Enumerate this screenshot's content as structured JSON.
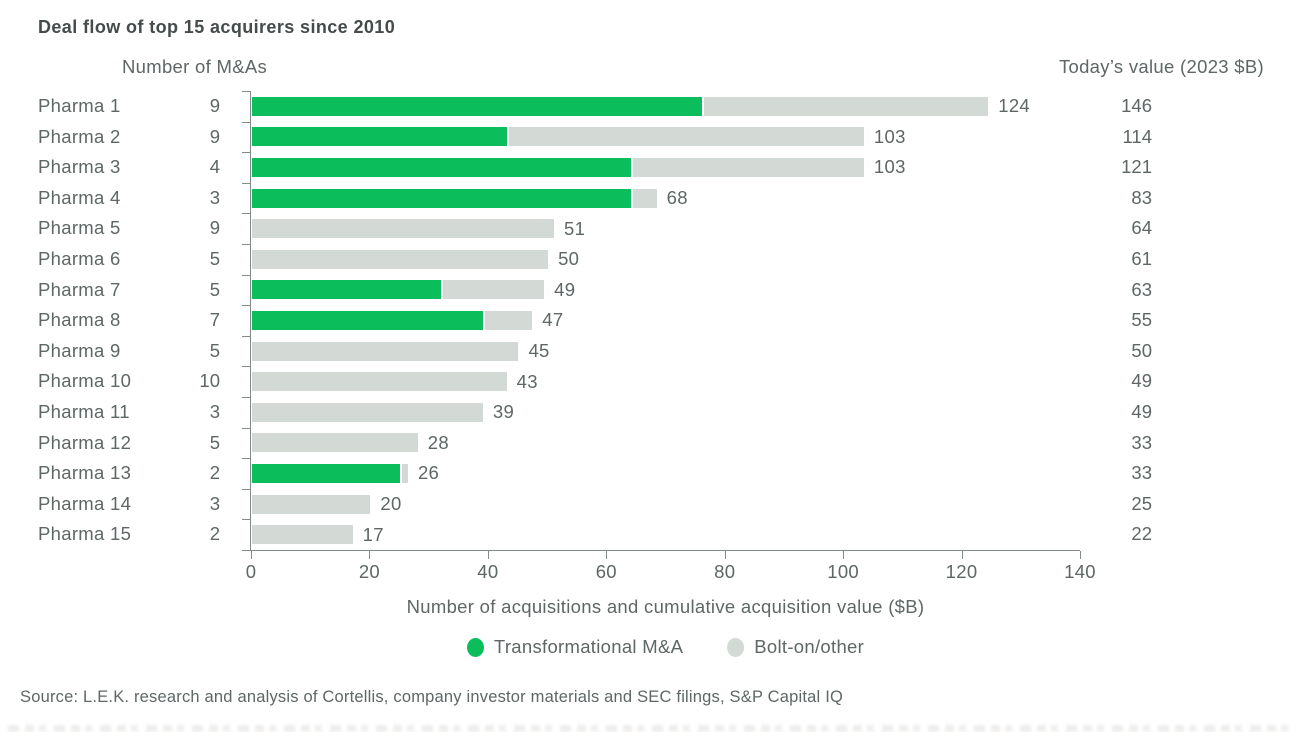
{
  "title": "Deal flow of top 15 acquirers since 2010",
  "headers": {
    "left": "Number of M&As",
    "right": "Today’s value (2023 $B)"
  },
  "chart_data": {
    "type": "bar",
    "orientation": "horizontal",
    "stacked": true,
    "x_axis": {
      "label": "Number of acquisitions and cumulative acquisition value ($B)",
      "min": 0,
      "max": 140,
      "ticks": [
        0,
        20,
        40,
        60,
        80,
        100,
        120,
        140
      ]
    },
    "legend": [
      {
        "label": "Transformational M&A",
        "color": "#0cbd5c"
      },
      {
        "label": "Bolt-on/other",
        "color": "#d3d9d4"
      }
    ],
    "series_note": "each row bar = transformational + bolt_on, bar label = total cumulative value ($B)",
    "rows": [
      {
        "label": "Pharma 1",
        "num_mas": 9,
        "transformational": 76,
        "bolt_on": 48,
        "total_label": 124,
        "todays_value": 146
      },
      {
        "label": "Pharma 2",
        "num_mas": 9,
        "transformational": 43,
        "bolt_on": 60,
        "total_label": 103,
        "todays_value": 114
      },
      {
        "label": "Pharma 3",
        "num_mas": 4,
        "transformational": 64,
        "bolt_on": 39,
        "total_label": 103,
        "todays_value": 121
      },
      {
        "label": "Pharma 4",
        "num_mas": 3,
        "transformational": 64,
        "bolt_on": 4,
        "total_label": 68,
        "todays_value": 83
      },
      {
        "label": "Pharma 5",
        "num_mas": 9,
        "transformational": 0,
        "bolt_on": 51,
        "total_label": 51,
        "todays_value": 64
      },
      {
        "label": "Pharma 6",
        "num_mas": 5,
        "transformational": 0,
        "bolt_on": 50,
        "total_label": 50,
        "todays_value": 61
      },
      {
        "label": "Pharma 7",
        "num_mas": 5,
        "transformational": 32,
        "bolt_on": 17,
        "total_label": 49,
        "todays_value": 63
      },
      {
        "label": "Pharma 8",
        "num_mas": 7,
        "transformational": 39,
        "bolt_on": 8,
        "total_label": 47,
        "todays_value": 55
      },
      {
        "label": "Pharma 9",
        "num_mas": 5,
        "transformational": 0,
        "bolt_on": 45,
        "total_label": 45,
        "todays_value": 50
      },
      {
        "label": "Pharma 10",
        "num_mas": 10,
        "transformational": 0,
        "bolt_on": 43,
        "total_label": 43,
        "todays_value": 49
      },
      {
        "label": "Pharma 11",
        "num_mas": 3,
        "transformational": 0,
        "bolt_on": 39,
        "total_label": 39,
        "todays_value": 49
      },
      {
        "label": "Pharma 12",
        "num_mas": 5,
        "transformational": 0,
        "bolt_on": 28,
        "total_label": 28,
        "todays_value": 33
      },
      {
        "label": "Pharma 13",
        "num_mas": 2,
        "transformational": 25,
        "bolt_on": 1,
        "total_label": 26,
        "todays_value": 33
      },
      {
        "label": "Pharma 14",
        "num_mas": 3,
        "transformational": 0,
        "bolt_on": 20,
        "total_label": 20,
        "todays_value": 25
      },
      {
        "label": "Pharma 15",
        "num_mas": 2,
        "transformational": 0,
        "bolt_on": 17,
        "total_label": 17,
        "todays_value": 22
      }
    ]
  },
  "source": "Source: L.E.K. research and analysis of Cortellis, company investor materials and SEC filings, S&P Capital IQ",
  "colors": {
    "transformational_green": "#0cbd5c",
    "bolt_on_gray": "#d3d9d4",
    "title_text": "#454b4b",
    "body_text": "#5e6666",
    "axis_line": "#828a8a"
  }
}
